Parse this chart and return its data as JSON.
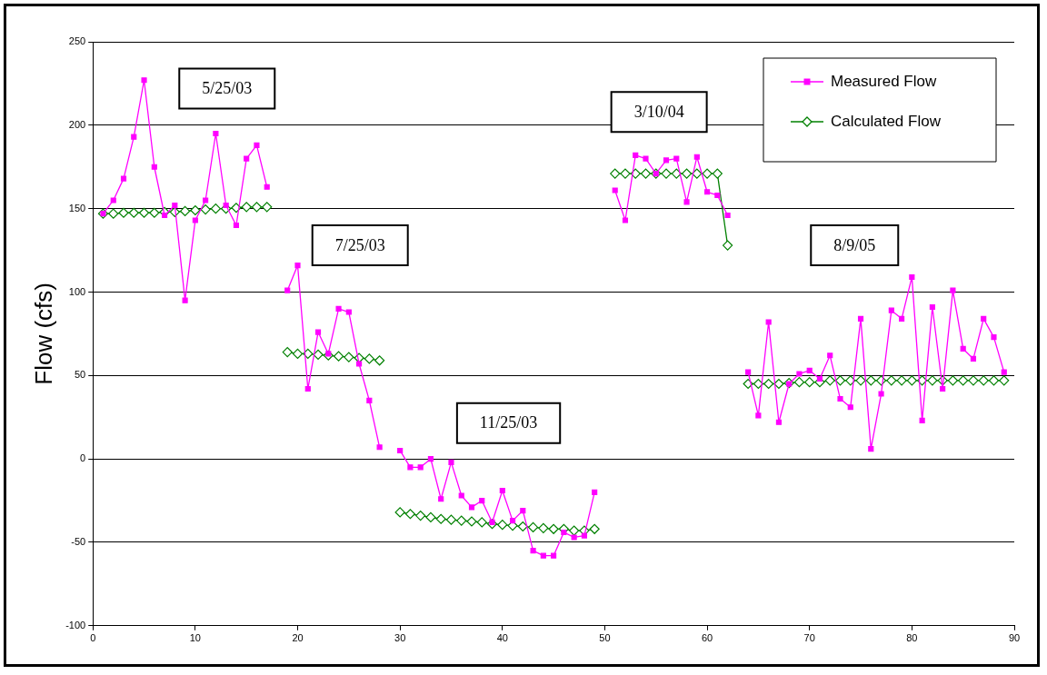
{
  "chart_data": {
    "type": "line",
    "ylabel": "Flow (cfs)",
    "xlim": [
      0,
      90
    ],
    "xticks": [
      0,
      10,
      20,
      30,
      40,
      50,
      60,
      70,
      80,
      90
    ],
    "ylim": [
      -100,
      250
    ],
    "yticks": [
      -100,
      -50,
      0,
      50,
      100,
      150,
      200,
      250
    ],
    "grid": "y",
    "legend": "top right",
    "line_style": "solid",
    "x": [
      1,
      2,
      3,
      4,
      5,
      6,
      7,
      8,
      9,
      10,
      11,
      12,
      13,
      14,
      15,
      16,
      17,
      18,
      19,
      20,
      21,
      22,
      23,
      24,
      25,
      26,
      27,
      28,
      29,
      30,
      31,
      32,
      33,
      34,
      35,
      36,
      37,
      38,
      39,
      40,
      41,
      42,
      43,
      44,
      45,
      46,
      47,
      48,
      49,
      50,
      51,
      52,
      53,
      54,
      55,
      56,
      57,
      58,
      59,
      60,
      61,
      62,
      63,
      64,
      65,
      66,
      67,
      68,
      69,
      70,
      71,
      72,
      73,
      74,
      75,
      76,
      77,
      78,
      79,
      80,
      81,
      82,
      83,
      84,
      85,
      86,
      87,
      88,
      89
    ],
    "series": [
      {
        "name": "Measured Flow",
        "color": "#ff00ff",
        "marker": "square",
        "values": [
          147,
          155,
          168,
          193,
          227,
          175,
          146,
          152,
          95,
          143,
          155,
          195,
          152,
          140,
          180,
          188,
          163,
          null,
          101,
          116,
          42,
          76,
          63,
          90,
          88,
          57,
          35,
          7,
          null,
          5,
          -5,
          -5,
          0,
          -24,
          -2,
          -22,
          -29,
          -25,
          -38,
          -19,
          -37,
          -31,
          -55,
          -58,
          -58,
          -44,
          -47,
          -46,
          -20,
          null,
          161,
          143,
          182,
          180,
          171,
          179,
          180,
          154,
          181,
          160,
          158,
          146,
          null,
          52,
          26,
          82,
          22,
          45,
          51,
          53,
          48,
          62,
          36,
          31,
          84,
          6,
          39,
          89,
          84,
          109,
          23,
          91,
          42,
          101,
          66,
          60,
          84,
          73,
          52
        ]
      },
      {
        "name": "Calculated Flow",
        "color": "#008000",
        "marker": "diamond",
        "values": [
          147,
          147,
          147.5,
          147.5,
          147.5,
          147.5,
          148,
          148,
          148.5,
          149,
          149.5,
          150,
          150,
          150.5,
          151,
          151,
          151,
          null,
          64,
          63,
          63,
          62.5,
          62,
          61.5,
          61,
          60.5,
          60,
          59,
          null,
          -32,
          -33,
          -34,
          -35,
          -36,
          -36.5,
          -37,
          -37.5,
          -38,
          -39,
          -39.5,
          -40,
          -40.5,
          -41,
          -41.5,
          -42,
          -42,
          -43,
          -43,
          -42,
          null,
          171,
          171,
          171,
          171,
          171,
          171,
          171,
          171,
          171,
          171,
          171,
          128,
          null,
          45,
          45,
          45,
          45,
          45.5,
          46,
          46,
          46,
          47,
          47,
          47,
          47,
          47,
          47,
          47,
          47,
          47,
          47,
          47,
          47,
          47,
          47,
          47,
          47,
          47,
          47
        ]
      }
    ],
    "annotations": [
      "5/25/03",
      "7/25/03",
      "11/25/03",
      "3/10/04",
      "8/9/05"
    ]
  }
}
